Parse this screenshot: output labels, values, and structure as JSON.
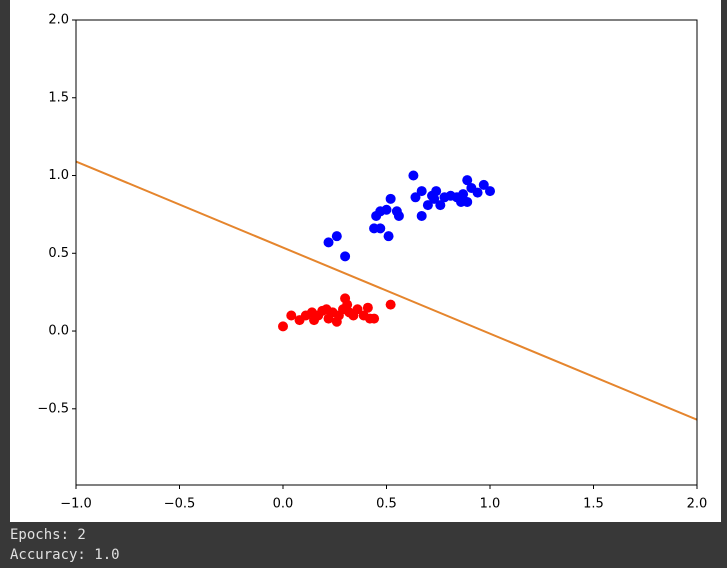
{
  "chart_data": {
    "type": "scatter",
    "xlim": [
      -1.0,
      2.0
    ],
    "ylim": [
      -0.99,
      2.0
    ],
    "xticks": [
      {
        "value": -1.0,
        "label": "−1.0"
      },
      {
        "value": -0.5,
        "label": "−0.5"
      },
      {
        "value": 0,
        "label": "0.0"
      },
      {
        "value": 0.5,
        "label": "0.5"
      },
      {
        "value": 1.0,
        "label": "1.0"
      },
      {
        "value": 1.5,
        "label": "1.5"
      },
      {
        "value": 2.0,
        "label": "2.0"
      }
    ],
    "yticks": [
      {
        "value": -0.5,
        "label": "−0.5"
      },
      {
        "value": 0,
        "label": "0.0"
      },
      {
        "value": 0.5,
        "label": "0.5"
      },
      {
        "value": 1.0,
        "label": "1.0"
      },
      {
        "value": 1.5,
        "label": "1.5"
      },
      {
        "value": 2.0,
        "label": "2.0"
      }
    ],
    "series": [
      {
        "kind": "scatter",
        "color": "#ff0000",
        "x": [
          0.0,
          0.04,
          0.08,
          0.11,
          0.14,
          0.17,
          0.19,
          0.22,
          0.24,
          0.27,
          0.29,
          0.3,
          0.32,
          0.34,
          0.36,
          0.39,
          0.41,
          0.42,
          0.44,
          0.52,
          0.26,
          0.15,
          0.21,
          0.31
        ],
        "values": [
          0.03,
          0.1,
          0.07,
          0.1,
          0.12,
          0.1,
          0.13,
          0.08,
          0.12,
          0.1,
          0.14,
          0.21,
          0.12,
          0.1,
          0.14,
          0.1,
          0.15,
          0.08,
          0.08,
          0.17,
          0.06,
          0.07,
          0.14,
          0.17
        ]
      },
      {
        "kind": "scatter",
        "color": "#0000ff",
        "x": [
          0.22,
          0.26,
          0.3,
          0.45,
          0.47,
          0.5,
          0.51,
          0.52,
          0.55,
          0.56,
          0.63,
          0.64,
          0.67,
          0.67,
          0.7,
          0.72,
          0.74,
          0.76,
          0.78,
          0.81,
          0.84,
          0.86,
          0.87,
          0.89,
          0.89,
          0.91,
          0.94,
          0.97,
          1.0,
          0.47,
          0.73,
          0.44
        ],
        "values": [
          0.57,
          0.61,
          0.48,
          0.74,
          0.66,
          0.78,
          0.61,
          0.85,
          0.77,
          0.74,
          1.0,
          0.86,
          0.9,
          0.74,
          0.81,
          0.87,
          0.9,
          0.81,
          0.86,
          0.87,
          0.86,
          0.83,
          0.88,
          0.83,
          0.97,
          0.92,
          0.89,
          0.94,
          0.9,
          0.77,
          0.85,
          0.66
        ]
      },
      {
        "kind": "line",
        "color": "#e5852d",
        "x": [
          -1.0,
          2.0
        ],
        "values": [
          1.09,
          -0.57
        ]
      }
    ]
  },
  "output": [
    "Epochs: 2",
    "Accuracy: 1.0"
  ]
}
